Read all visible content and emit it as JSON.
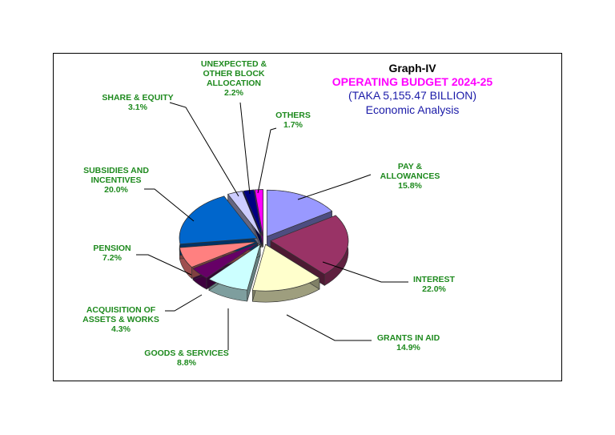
{
  "titles": {
    "graph": "Graph-IV",
    "main": "OPERATING BUDGET 2024-25",
    "sub": "(TAKA 5,155.47 BILLION)",
    "analysis": "Economic Analysis"
  },
  "chart_data": {
    "type": "pie",
    "title": "OPERATING BUDGET 2024-25",
    "slices": [
      {
        "label": [
          "PAY &",
          "ALLOWANCES"
        ],
        "pct_text": "15.8%",
        "value": 15.8,
        "color": "#9999ff"
      },
      {
        "label": [
          "INTEREST"
        ],
        "pct_text": "22.0%",
        "value": 22.0,
        "color": "#993366"
      },
      {
        "label": [
          "GRANTS IN AID"
        ],
        "pct_text": "14.9%",
        "value": 14.9,
        "color": "#ffffcc"
      },
      {
        "label": [
          "GOODS & SERVICES"
        ],
        "pct_text": "8.8%",
        "value": 8.8,
        "color": "#ccffff"
      },
      {
        "label": [
          "ACQUISITION OF",
          "ASSETS & WORKS"
        ],
        "pct_text": "4.3%",
        "value": 4.3,
        "color": "#660066"
      },
      {
        "label": [
          "PENSION"
        ],
        "pct_text": "7.2%",
        "value": 7.2,
        "color": "#ff8080"
      },
      {
        "label": [
          "SUBSIDIES AND",
          "INCENTIVES"
        ],
        "pct_text": "20.0%",
        "value": 20.0,
        "color": "#0066cc"
      },
      {
        "label": [
          "SHARE & EQUITY"
        ],
        "pct_text": "3.1%",
        "value": 3.1,
        "color": "#ccccff"
      },
      {
        "label": [
          "UNEXPECTED &",
          "OTHER BLOCK",
          "ALLOCATION"
        ],
        "pct_text": "2.2%",
        "value": 2.2,
        "color": "#000080"
      },
      {
        "label": [
          "OTHERS"
        ],
        "pct_text": "1.7%",
        "value": 1.7,
        "color": "#ff00ff"
      }
    ]
  }
}
